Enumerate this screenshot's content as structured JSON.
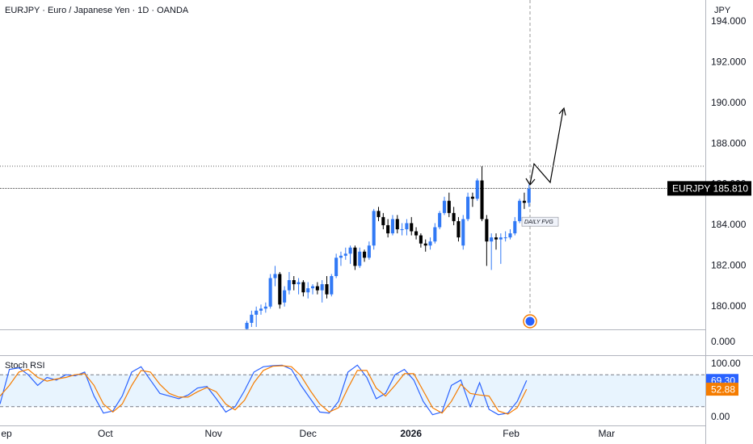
{
  "chart_data": [
    {
      "type": "candlestick",
      "title": "EURJPY · Euro / Japanese Yen · 1D · OANDA",
      "unit_label": "JPY",
      "up_color": "#3179f5",
      "down_color": "#000000",
      "xlim": [
        0,
        150
      ],
      "xticks": [
        {
          "value": 0.7,
          "label": "ep"
        },
        {
          "value": 22.4,
          "label": "Oct"
        },
        {
          "value": 45.4,
          "label": "Nov"
        },
        {
          "value": 65.5,
          "label": "Dec"
        },
        {
          "value": 87.4,
          "label": "2026"
        },
        {
          "value": 108.7,
          "label": "Feb"
        },
        {
          "value": 129,
          "label": "Mar"
        }
      ],
      "ylim": [
        178.88,
        195.07
      ],
      "yticks": [
        {
          "value": 180,
          "label": "180.000"
        },
        {
          "value": 182,
          "label": "182.000"
        },
        {
          "value": 184,
          "label": "184.000"
        },
        {
          "value": 186,
          "label": "186.000"
        },
        {
          "value": 188,
          "label": "188.000"
        },
        {
          "value": 190,
          "label": "190.000"
        },
        {
          "value": 192,
          "label": "192.000"
        },
        {
          "value": 194,
          "label": "194.000"
        }
      ],
      "x": [
        52.5,
        53.5,
        54.5,
        55.5,
        56.5,
        57.5,
        58.5,
        59.5,
        60.5,
        61.5,
        62.5,
        63.5,
        64.5,
        65.5,
        66.5,
        67.5,
        68.5,
        69.5,
        70.5,
        71.5,
        72.5,
        73.5,
        74.5,
        75.5,
        76.5,
        77.5,
        78.5,
        79.5,
        80.5,
        81.5,
        82.5,
        83.5,
        84.5,
        85.5,
        86.5,
        87.5,
        88.5,
        89.5,
        90.5,
        91.5,
        92.5,
        93.5,
        94.5,
        95.5,
        96.5,
        97.5,
        98.5,
        99.5,
        100.5,
        101.5,
        102.5,
        103.5,
        104.5,
        105.5,
        106.5,
        107.5,
        108.5,
        109.5,
        110.5,
        111.5,
        112.5
      ],
      "ohlc": [
        [
          178.9,
          179.3,
          178.8,
          179.2
        ],
        [
          179.2,
          179.8,
          179.0,
          179.6
        ],
        [
          179.6,
          180.0,
          179.0,
          179.8
        ],
        [
          179.8,
          180.1,
          179.6,
          179.9
        ],
        [
          179.9,
          180.2,
          179.7,
          180.0
        ],
        [
          180.0,
          181.6,
          179.9,
          181.4
        ],
        [
          181.4,
          182.0,
          181.0,
          181.6
        ],
        [
          181.6,
          181.7,
          179.9,
          180.1
        ],
        [
          180.2,
          181.0,
          180.0,
          180.8
        ],
        [
          180.8,
          181.7,
          180.6,
          181.3
        ],
        [
          181.3,
          181.5,
          180.8,
          181.1
        ],
        [
          181.1,
          181.4,
          180.6,
          181.2
        ],
        [
          181.2,
          181.3,
          180.5,
          180.7
        ],
        [
          180.7,
          181.2,
          180.4,
          180.9
        ],
        [
          180.9,
          181.1,
          180.6,
          181.0
        ],
        [
          181.0,
          181.2,
          180.6,
          180.8
        ],
        [
          180.8,
          181.3,
          180.2,
          181.1
        ],
        [
          181.1,
          181.5,
          180.4,
          180.6
        ],
        [
          180.6,
          181.6,
          180.5,
          181.5
        ],
        [
          181.5,
          182.6,
          181.4,
          182.4
        ],
        [
          182.4,
          182.7,
          182.0,
          182.5
        ],
        [
          182.5,
          182.9,
          182.3,
          182.6
        ],
        [
          182.6,
          183.0,
          182.1,
          182.9
        ],
        [
          182.9,
          183.0,
          181.8,
          182.0
        ],
        [
          182.0,
          182.9,
          181.9,
          182.7
        ],
        [
          182.7,
          182.8,
          182.2,
          182.4
        ],
        [
          182.4,
          183.2,
          182.3,
          183.0
        ],
        [
          183.0,
          184.8,
          182.8,
          184.7
        ],
        [
          184.7,
          184.9,
          184.2,
          184.4
        ],
        [
          184.4,
          184.6,
          183.8,
          184.0
        ],
        [
          184.0,
          184.3,
          183.4,
          183.6
        ],
        [
          183.6,
          184.5,
          183.5,
          184.3
        ],
        [
          184.3,
          184.5,
          183.6,
          183.8
        ],
        [
          183.8,
          184.1,
          183.5,
          183.8
        ],
        [
          183.8,
          184.3,
          183.5,
          184.1
        ],
        [
          184.1,
          184.4,
          183.5,
          183.7
        ],
        [
          183.7,
          183.9,
          183.3,
          183.5
        ],
        [
          183.5,
          183.6,
          182.9,
          183.1
        ],
        [
          183.1,
          183.3,
          182.7,
          183.0
        ],
        [
          183.0,
          183.4,
          182.8,
          183.2
        ],
        [
          183.2,
          184.1,
          183.1,
          183.9
        ],
        [
          183.9,
          184.7,
          183.8,
          184.6
        ],
        [
          184.6,
          185.4,
          184.5,
          185.2
        ],
        [
          185.2,
          185.6,
          184.4,
          184.6
        ],
        [
          184.6,
          184.9,
          184.0,
          184.2
        ],
        [
          184.2,
          184.4,
          183.2,
          183.4
        ],
        [
          183.0,
          184.5,
          182.8,
          184.3
        ],
        [
          184.3,
          185.6,
          184.2,
          185.4
        ],
        [
          185.4,
          185.6,
          184.9,
          185.3
        ],
        [
          185.3,
          186.3,
          185.2,
          186.2
        ],
        [
          186.2,
          186.9,
          184.2,
          184.3
        ],
        [
          184.3,
          184.5,
          182.0,
          183.2
        ],
        [
          183.2,
          183.6,
          181.8,
          183.4
        ],
        [
          183.4,
          183.6,
          182.8,
          183.3
        ],
        [
          183.3,
          183.6,
          182.1,
          183.4
        ],
        [
          183.4,
          183.7,
          183.2,
          183.4
        ],
        [
          183.4,
          183.8,
          183.3,
          183.6
        ],
        [
          183.6,
          184.4,
          183.5,
          184.2
        ],
        [
          184.2,
          185.3,
          184.1,
          185.2
        ],
        [
          185.2,
          185.6,
          184.8,
          185.1
        ],
        [
          185.1,
          186.0,
          184.9,
          185.8
        ]
      ],
      "level_line": 186.9,
      "last_price": {
        "symbol": "EURJPY",
        "value": 185.81,
        "label": "185.810"
      },
      "annotation": "DAILY FVG"
    },
    {
      "type": "line",
      "title": "Stoch RSI",
      "xlim": [
        0,
        150
      ],
      "ylim": [
        -15.2,
        115.2
      ],
      "yticks": [
        {
          "value": 0,
          "label": "0.00"
        },
        {
          "value": 100,
          "label": "100.00"
        }
      ],
      "bands": [
        20,
        80
      ],
      "x": [
        0,
        2,
        4,
        6,
        8,
        10,
        12,
        14,
        16,
        18,
        20,
        22,
        24,
        26,
        28,
        30,
        32,
        34,
        36,
        38,
        40,
        42,
        44,
        46,
        48,
        50,
        52,
        54,
        56,
        58,
        60,
        62,
        64,
        66,
        68,
        70,
        72,
        74,
        76,
        78,
        80,
        82,
        84,
        86,
        88,
        90,
        92,
        94,
        96,
        98,
        100,
        102,
        104,
        106,
        108,
        110,
        112
      ],
      "series": [
        {
          "color": "#2962ff",
          "last_label": "69.30",
          "values": [
            25,
            90,
            93,
            80,
            60,
            75,
            70,
            80,
            78,
            85,
            40,
            8,
            12,
            40,
            85,
            95,
            70,
            45,
            40,
            35,
            42,
            55,
            58,
            35,
            10,
            20,
            50,
            85,
            95,
            97,
            98,
            90,
            60,
            35,
            10,
            8,
            30,
            85,
            98,
            75,
            35,
            45,
            80,
            90,
            70,
            30,
            5,
            10,
            60,
            70,
            20,
            65,
            15,
            5,
            8,
            30,
            69.3
          ]
        },
        {
          "color": "#f57c00",
          "last_label": "52.88",
          "values": [
            40,
            60,
            85,
            90,
            75,
            68,
            72,
            75,
            80,
            82,
            60,
            25,
            10,
            25,
            60,
            88,
            85,
            62,
            45,
            38,
            38,
            48,
            56,
            48,
            25,
            14,
            32,
            65,
            88,
            96,
            97,
            95,
            78,
            50,
            25,
            10,
            18,
            55,
            88,
            88,
            55,
            40,
            60,
            82,
            82,
            50,
            18,
            8,
            30,
            62,
            45,
            42,
            40,
            12,
            6,
            18,
            52.88
          ]
        }
      ]
    }
  ],
  "lower_pane": {
    "tick_label": "0.000"
  }
}
